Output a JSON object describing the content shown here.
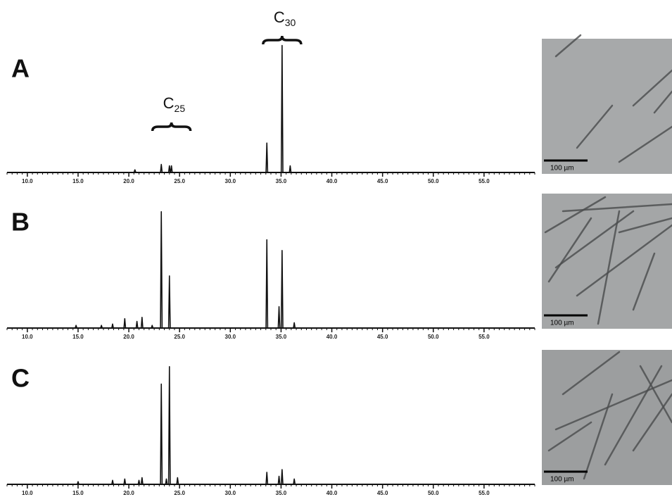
{
  "chart_data": [
    {
      "type": "line",
      "title": "A",
      "color": "#111111",
      "xlim": [
        8,
        60
      ],
      "ylim": [
        0,
        100
      ],
      "xticks": [
        {
          "value": 10,
          "label": "10.0"
        },
        {
          "value": 15,
          "label": "15.0"
        },
        {
          "value": 20,
          "label": "20.0"
        },
        {
          "value": 25,
          "label": "25.0"
        },
        {
          "value": 30,
          "label": "30.0"
        },
        {
          "value": 35,
          "label": "35.0"
        },
        {
          "value": 40,
          "label": "40.0"
        },
        {
          "value": 45,
          "label": "45.0"
        },
        {
          "value": 50,
          "label": "50.0"
        },
        {
          "value": 55,
          "label": "55.0"
        }
      ],
      "annotations": [
        {
          "main": "C",
          "sub": "25"
        },
        {
          "main": "C",
          "sub": "30"
        }
      ],
      "scale_bar_label": "100 µm",
      "x": [
        8,
        20.5,
        20.6,
        20.7,
        23.12,
        23.2,
        23.28,
        23.92,
        24.0,
        24.08,
        24.12,
        24.2,
        24.28,
        33.52,
        33.6,
        33.68,
        35.02,
        35.1,
        35.18,
        35.82,
        35.9,
        35.98,
        60
      ],
      "values": [
        0,
        0,
        2,
        0,
        0,
        6,
        0,
        0,
        5,
        0,
        0,
        5,
        0,
        0,
        22,
        0,
        0,
        95,
        0,
        0,
        5,
        0,
        0
      ]
    },
    {
      "type": "line",
      "title": "B",
      "color": "#111111",
      "xlim": [
        8,
        60
      ],
      "ylim": [
        0,
        100
      ],
      "xticks": [
        {
          "value": 10,
          "label": "10.0"
        },
        {
          "value": 15,
          "label": "15.0"
        },
        {
          "value": 20,
          "label": "20.0"
        },
        {
          "value": 25,
          "label": "25.0"
        },
        {
          "value": 30,
          "label": "30.0"
        },
        {
          "value": 35,
          "label": "35.0"
        },
        {
          "value": 40,
          "label": "40.0"
        },
        {
          "value": 45,
          "label": "45.0"
        },
        {
          "value": 50,
          "label": "50.0"
        },
        {
          "value": 55,
          "label": "55.0"
        }
      ],
      "scale_bar_label": "100 µm",
      "x": [
        8,
        14.72,
        14.8,
        14.88,
        17.22,
        17.3,
        17.38,
        18.32,
        18.4,
        18.48,
        19.52,
        19.6,
        19.68,
        20.72,
        20.8,
        20.88,
        21.22,
        21.3,
        21.38,
        22.22,
        22.3,
        22.38,
        23.12,
        23.2,
        23.28,
        23.92,
        24.0,
        24.08,
        33.52,
        33.6,
        33.68,
        34.72,
        34.8,
        34.88,
        35.02,
        35.1,
        35.18,
        36.22,
        36.3,
        36.38,
        60
      ],
      "values": [
        0,
        0,
        2,
        0,
        0,
        2,
        0,
        0,
        3,
        0,
        0,
        7,
        0,
        0,
        5,
        0,
        0,
        8,
        0,
        0,
        2,
        0,
        0,
        87,
        0,
        0,
        39,
        0,
        0,
        66,
        0,
        0,
        16,
        0,
        0,
        58,
        0,
        0,
        4,
        0,
        0
      ]
    },
    {
      "type": "line",
      "title": "C",
      "color": "#111111",
      "xlim": [
        8,
        60
      ],
      "ylim": [
        0,
        100
      ],
      "xticks": [
        {
          "value": 10,
          "label": "10.0"
        },
        {
          "value": 15,
          "label": "15.0"
        },
        {
          "value": 20,
          "label": "20.0"
        },
        {
          "value": 25,
          "label": "25.0"
        },
        {
          "value": 30,
          "label": "30.0"
        },
        {
          "value": 35,
          "label": "35.0"
        },
        {
          "value": 40,
          "label": "40.0"
        },
        {
          "value": 45,
          "label": "45.0"
        },
        {
          "value": 50,
          "label": "50.0"
        },
        {
          "value": 55,
          "label": "55.0"
        }
      ],
      "scale_bar_label": "100 µm",
      "x": [
        8,
        14.92,
        15.0,
        15.08,
        18.32,
        18.4,
        18.48,
        19.52,
        19.6,
        19.68,
        20.92,
        21.0,
        21.08,
        21.22,
        21.3,
        21.38,
        23.12,
        23.2,
        23.28,
        23.62,
        23.7,
        23.78,
        23.92,
        24.0,
        24.08,
        24.72,
        24.8,
        24.88,
        33.52,
        33.6,
        33.68,
        34.72,
        34.8,
        34.88,
        35.02,
        35.1,
        35.18,
        36.22,
        36.3,
        36.38,
        60
      ],
      "values": [
        0,
        0,
        2,
        0,
        0,
        3,
        0,
        0,
        4,
        0,
        0,
        3,
        0,
        0,
        5,
        0,
        0,
        75,
        0,
        0,
        4,
        0,
        0,
        88,
        0,
        0,
        5,
        0,
        0,
        9,
        0,
        0,
        6,
        0,
        0,
        11,
        0,
        0,
        4,
        0,
        0
      ]
    }
  ]
}
